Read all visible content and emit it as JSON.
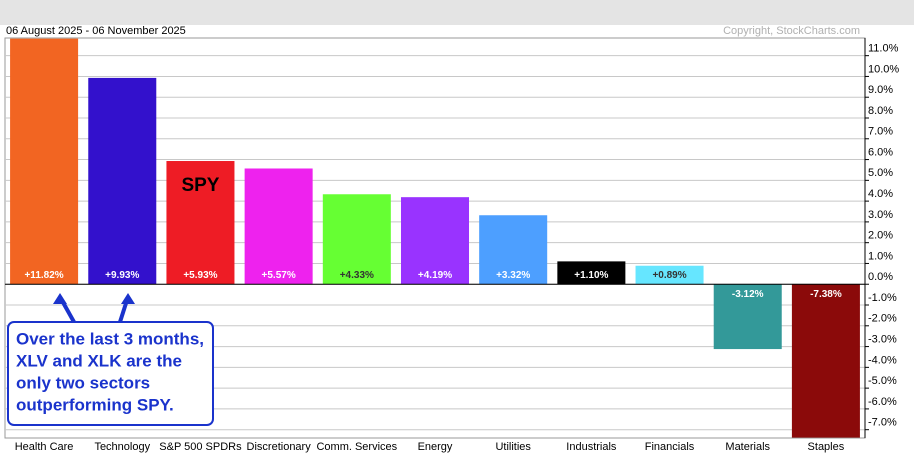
{
  "chart_data": {
    "type": "bar",
    "title": "06 August 2025 - 06 November 2025",
    "credit": "Copyright, StockCharts.com",
    "categories": [
      "Health Care",
      "Technology",
      "S&P 500 SPDRs",
      "Discretionary",
      "Comm. Services",
      "Energy",
      "Utilities",
      "Industrials",
      "Financials",
      "Materials",
      "Staples"
    ],
    "values": [
      11.82,
      9.93,
      5.93,
      5.57,
      4.33,
      4.19,
      3.32,
      1.1,
      0.89,
      -3.12,
      -7.38
    ],
    "value_labels": [
      "+11.82%",
      "+9.93%",
      "+5.93%",
      "+5.57%",
      "+4.33%",
      "+4.19%",
      "+3.32%",
      "+1.10%",
      "+0.89%",
      "-3.12%",
      "-7.38%"
    ],
    "colors": [
      "#f26522",
      "#3311cc",
      "#ee1c25",
      "#ee22ee",
      "#66ff33",
      "#9933ff",
      "#4d9fff",
      "#000000",
      "#66e6ff",
      "#339999",
      "#8b0a0a"
    ],
    "ylim": [
      -7.4,
      11.85
    ],
    "yticks": [
      {
        "value": 11,
        "label": "11.0%"
      },
      {
        "value": 10,
        "label": "10.0%"
      },
      {
        "value": 9,
        "label": "9.0%"
      },
      {
        "value": 8,
        "label": "8.0%"
      },
      {
        "value": 7,
        "label": "7.0%"
      },
      {
        "value": 6,
        "label": "6.0%"
      },
      {
        "value": 5,
        "label": "5.0%"
      },
      {
        "value": 4,
        "label": "4.0%"
      },
      {
        "value": 3,
        "label": "3.0%"
      },
      {
        "value": 2,
        "label": "2.0%"
      },
      {
        "value": 1,
        "label": "1.0%"
      },
      {
        "value": 0,
        "label": "0.0%"
      },
      {
        "value": -1,
        "label": "-1.0%"
      },
      {
        "value": -2,
        "label": "-2.0%"
      },
      {
        "value": -3,
        "label": "-3.0%"
      },
      {
        "value": -4,
        "label": "-4.0%"
      },
      {
        "value": -5,
        "label": "-5.0%"
      },
      {
        "value": -6,
        "label": "-6.0%"
      },
      {
        "value": -7,
        "label": "-7.0%"
      }
    ],
    "grid": true,
    "bar_annotation": "SPY",
    "callout": [
      "Over the last 3 months,",
      "XLV and XLK are the",
      "only two sectors",
      "outperforming SPY."
    ]
  }
}
